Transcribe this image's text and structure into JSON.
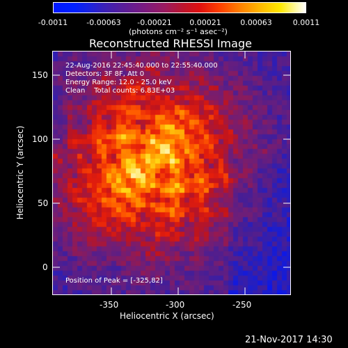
{
  "colorbar": {
    "ticks": [
      "-0.0011",
      "-0.00063",
      "-0.00021",
      "0.00021",
      "0.00063",
      "0.0011"
    ],
    "unit_label": "(photons cm⁻² s⁻¹ asec⁻²)"
  },
  "title": "Reconstructed RHESSI Image",
  "overlay": {
    "line1": "22-Aug-2016 22:45:40.000 to 22:55:40.000",
    "line2": "Detectors: 3F 8F, Att 0",
    "line3": "Energy Range: 12.0 - 25.0 keV",
    "line4": "Clean    Total counts: 6.83E+03",
    "peak": "Position of Peak = [-325,82]"
  },
  "axes": {
    "xlabel": "Heliocentric X (arcsec)",
    "ylabel": "Heliocentric Y (arcsec)",
    "xticks": [
      "-350",
      "-300",
      "-250"
    ],
    "yticks": [
      "0",
      "50",
      "100",
      "150"
    ]
  },
  "footer": {
    "timestamp": "21-Nov-2017 14:30"
  },
  "colors": {
    "background": "#000000",
    "frame": "#ffffff"
  }
}
